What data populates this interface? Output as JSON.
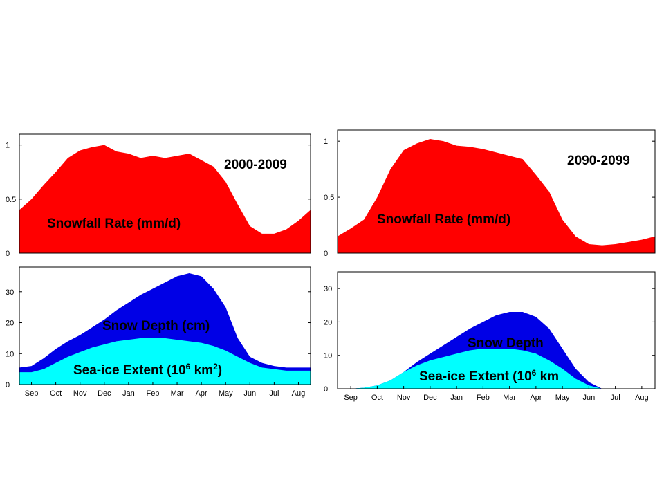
{
  "chart_data": [
    {
      "id": "snowfall-2000",
      "type": "area",
      "period_label": "2000-2009",
      "overlay_labels": [
        "Snowfall Rate (mm/d)"
      ],
      "x_months": [
        "Sep",
        "Oct",
        "Nov",
        "Dec",
        "Jan",
        "Feb",
        "Mar",
        "Apr",
        "May",
        "Jun",
        "Jul",
        "Aug"
      ],
      "ylim": [
        0,
        1.1
      ],
      "yticks": [
        0,
        0.5,
        1
      ],
      "ytick_labels": [
        "0",
        "0.5",
        "1"
      ],
      "series": [
        {
          "color": "#ff0000",
          "x": [
            0,
            0.5,
            1,
            1.5,
            2,
            2.5,
            3,
            3.5,
            4,
            4.5,
            5,
            5.5,
            6,
            6.5,
            7,
            7.5,
            8,
            8.5,
            9,
            9.5,
            10,
            10.5,
            11,
            11.5,
            12
          ],
          "y": [
            0.4,
            0.5,
            0.63,
            0.75,
            0.88,
            0.95,
            0.98,
            1.0,
            0.94,
            0.92,
            0.88,
            0.9,
            0.88,
            0.9,
            0.92,
            0.86,
            0.8,
            0.66,
            0.45,
            0.25,
            0.18,
            0.18,
            0.22,
            0.3,
            0.4
          ]
        }
      ]
    },
    {
      "id": "snowfall-2090",
      "type": "area",
      "period_label": "2090-2099",
      "overlay_labels": [
        "Snowfall Rate (mm/d)"
      ],
      "x_months": [
        "Sep",
        "Oct",
        "Nov",
        "Dec",
        "Jan",
        "Feb",
        "Mar",
        "Apr",
        "May",
        "Jun",
        "Jul",
        "Aug"
      ],
      "ylim": [
        0,
        1.1
      ],
      "yticks": [
        0,
        0.5,
        1
      ],
      "ytick_labels": [
        "0",
        "0.5",
        "1"
      ],
      "series": [
        {
          "color": "#ff0000",
          "x": [
            0,
            0.5,
            1,
            1.5,
            2,
            2.5,
            3,
            3.5,
            4,
            4.5,
            5,
            5.5,
            6,
            6.5,
            7,
            7.5,
            8,
            8.5,
            9,
            9.5,
            10,
            10.5,
            11,
            11.5,
            12
          ],
          "y": [
            0.15,
            0.22,
            0.3,
            0.5,
            0.75,
            0.92,
            0.98,
            1.02,
            1.0,
            0.96,
            0.95,
            0.93,
            0.9,
            0.87,
            0.84,
            0.7,
            0.55,
            0.3,
            0.15,
            0.08,
            0.07,
            0.08,
            0.1,
            0.12,
            0.15
          ]
        }
      ]
    },
    {
      "id": "depth-2000",
      "type": "area",
      "overlay_labels": [
        "Snow Depth (cm)",
        "Sea-ice Extent (10",
        "6",
        " km",
        "2",
        ")"
      ],
      "x_months": [
        "Sep",
        "Oct",
        "Nov",
        "Dec",
        "Jan",
        "Feb",
        "Mar",
        "Apr",
        "May",
        "Jun",
        "Jul",
        "Aug"
      ],
      "ylim": [
        0,
        38
      ],
      "yticks": [
        0,
        10,
        20,
        30
      ],
      "ytick_labels": [
        "0",
        "10",
        "20",
        "30"
      ],
      "series": [
        {
          "color": "#0000e6",
          "x": [
            0,
            0.5,
            1,
            1.5,
            2,
            2.5,
            3,
            3.5,
            4,
            4.5,
            5,
            5.5,
            6,
            6.5,
            7,
            7.5,
            8,
            8.5,
            9,
            9.5,
            10,
            10.5,
            11,
            11.5,
            12
          ],
          "y": [
            5.5,
            6,
            8.5,
            11.5,
            14,
            16,
            18.5,
            21,
            24,
            26.5,
            29,
            31,
            33,
            35,
            36,
            35,
            31,
            25,
            15,
            9,
            7,
            6,
            5.5,
            5.5,
            5.5
          ]
        },
        {
          "color": "#00ffff",
          "x": [
            0,
            0.5,
            1,
            1.5,
            2,
            2.5,
            3,
            3.5,
            4,
            4.5,
            5,
            5.5,
            6,
            6.5,
            7,
            7.5,
            8,
            8.5,
            9,
            9.5,
            10,
            10.5,
            11,
            11.5,
            12
          ],
          "y": [
            4,
            4,
            5,
            7,
            9,
            10.5,
            12,
            13,
            14,
            14.5,
            15,
            15,
            15,
            14.5,
            14,
            13.5,
            12.5,
            11,
            9,
            7,
            5.5,
            5,
            4.5,
            4.5,
            4.5
          ]
        }
      ]
    },
    {
      "id": "depth-2090",
      "type": "area",
      "overlay_labels": [
        "Snow Depth",
        "Sea-ice Extent (10",
        "6",
        " km"
      ],
      "x_months": [
        "Sep",
        "Oct",
        "Nov",
        "Dec",
        "Jan",
        "Feb",
        "Mar",
        "Apr",
        "May",
        "Jun",
        "Jul",
        "Aug"
      ],
      "ylim": [
        0,
        35
      ],
      "yticks": [
        0,
        10,
        20,
        30
      ],
      "ytick_labels": [
        "0",
        "10",
        "20",
        "30"
      ],
      "series": [
        {
          "color": "#0000e6",
          "x": [
            0,
            0.5,
            1,
            1.5,
            2,
            2.5,
            3,
            3.5,
            4,
            4.5,
            5,
            5.5,
            6,
            6.5,
            7,
            7.5,
            8,
            8.5,
            9,
            9.5,
            10,
            10.5,
            11,
            11.5,
            12
          ],
          "y": [
            0,
            0,
            0.3,
            1,
            2.5,
            5,
            8,
            10.5,
            13,
            15.5,
            18,
            20,
            22,
            23,
            23,
            21.5,
            18,
            12,
            6,
            2,
            0,
            0,
            0,
            0,
            0
          ]
        },
        {
          "color": "#00ffff",
          "x": [
            0,
            0.5,
            1,
            1.5,
            2,
            2.5,
            3,
            3.5,
            4,
            4.5,
            5,
            5.5,
            6,
            6.5,
            7,
            7.5,
            8,
            8.5,
            9,
            9.5,
            10,
            10.5,
            11,
            11.5,
            12
          ],
          "y": [
            0,
            0,
            0.3,
            1,
            2.5,
            5,
            7,
            8.5,
            9.5,
            10.5,
            11.5,
            12,
            12,
            12,
            11.5,
            10.5,
            8.5,
            6,
            3,
            1,
            0,
            0,
            0,
            0,
            0
          ]
        }
      ]
    }
  ]
}
